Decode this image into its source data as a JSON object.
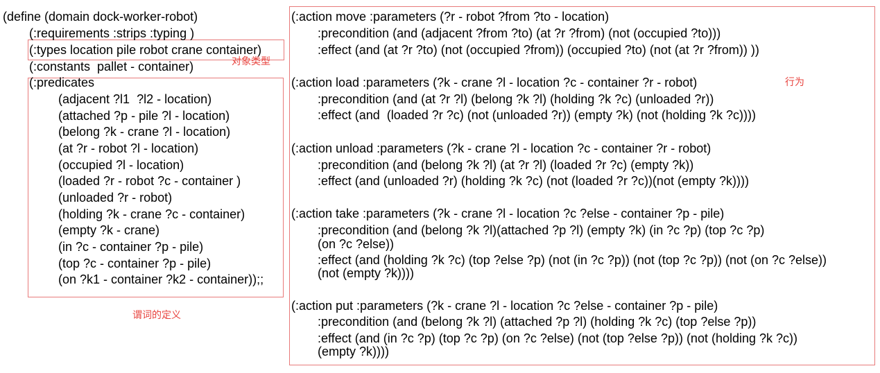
{
  "domain_def": {
    "define": "(define (domain dock-worker-robot)",
    "requirements": "(:requirements :strips :typing )",
    "types": "(:types location pile robot crane container)",
    "constants": "(:constants  pallet - container)",
    "predicates_header": "(:predicates",
    "predicates": [
      "(adjacent ?l1  ?l2 - location)",
      "(attached ?p - pile ?l - location)",
      "(belong ?k - crane ?l - location)",
      "(at ?r - robot ?l - location)",
      "(occupied ?l - location)",
      "(loaded ?r - robot ?c - container )",
      "(unloaded ?r - robot)",
      "(holding ?k - crane ?c - container)",
      "(empty ?k - crane)",
      "(in ?c - container ?p - pile)",
      "(top ?c - container ?p - pile)",
      "(on ?k1 - container ?k2 - container));;"
    ]
  },
  "annotations": {
    "types_note": "对象类型",
    "actions_note": "行为",
    "predicates_note": "谓词的定义"
  },
  "actions": [
    {
      "header": "(:action move :parameters (?r - robot ?from ?to - location)",
      "lines": [
        ":precondition (and (adjacent ?from ?to) (at ?r ?from) (not (occupied ?to)))",
        ":effect (and (at ?r ?to) (not (occupied ?from)) (occupied ?to) (not (at ?r ?from)) ))"
      ]
    },
    {
      "header": "(:action load :parameters (?k - crane ?l - location ?c - container ?r - robot)",
      "lines": [
        ":precondition (and (at ?r ?l) (belong ?k ?l) (holding ?k ?c) (unloaded ?r))",
        ":effect (and  (loaded ?r ?c) (not (unloaded ?r)) (empty ?k) (not (holding ?k ?c))))"
      ]
    },
    {
      "header": "(:action unload :parameters (?k - crane ?l - location ?c - container ?r - robot)",
      "lines": [
        ":precondition (and (belong ?k ?l) (at ?r ?l) (loaded ?r ?c) (empty ?k))",
        ":effect (and (unloaded ?r) (holding ?k ?c) (not (loaded ?r ?c))(not (empty ?k))))"
      ]
    },
    {
      "header": "(:action take :parameters (?k - crane ?l - location ?c ?else - container ?p - pile)",
      "lines": [
        ":precondition (and (belong ?k ?l)(attached ?p ?l) (empty ?k) (in ?c ?p) (top ?c ?p)",
        "(on ?c ?else))",
        ":effect (and (holding ?k ?c) (top ?else ?p) (not (in ?c ?p)) (not (top ?c ?p)) (not (on ?c ?else))",
        "(not (empty ?k))))"
      ]
    },
    {
      "header": "(:action put :parameters (?k - crane ?l - location ?c ?else - container ?p - pile)",
      "lines": [
        ":precondition (and (belong ?k ?l) (attached ?p ?l) (holding ?k ?c) (top ?else ?p))",
        ":effect (and (in ?c ?p) (top ?c ?p) (on ?c ?else) (not (top ?else ?p)) (not (holding ?k ?c))",
        "(empty ?k))))"
      ]
    }
  ]
}
